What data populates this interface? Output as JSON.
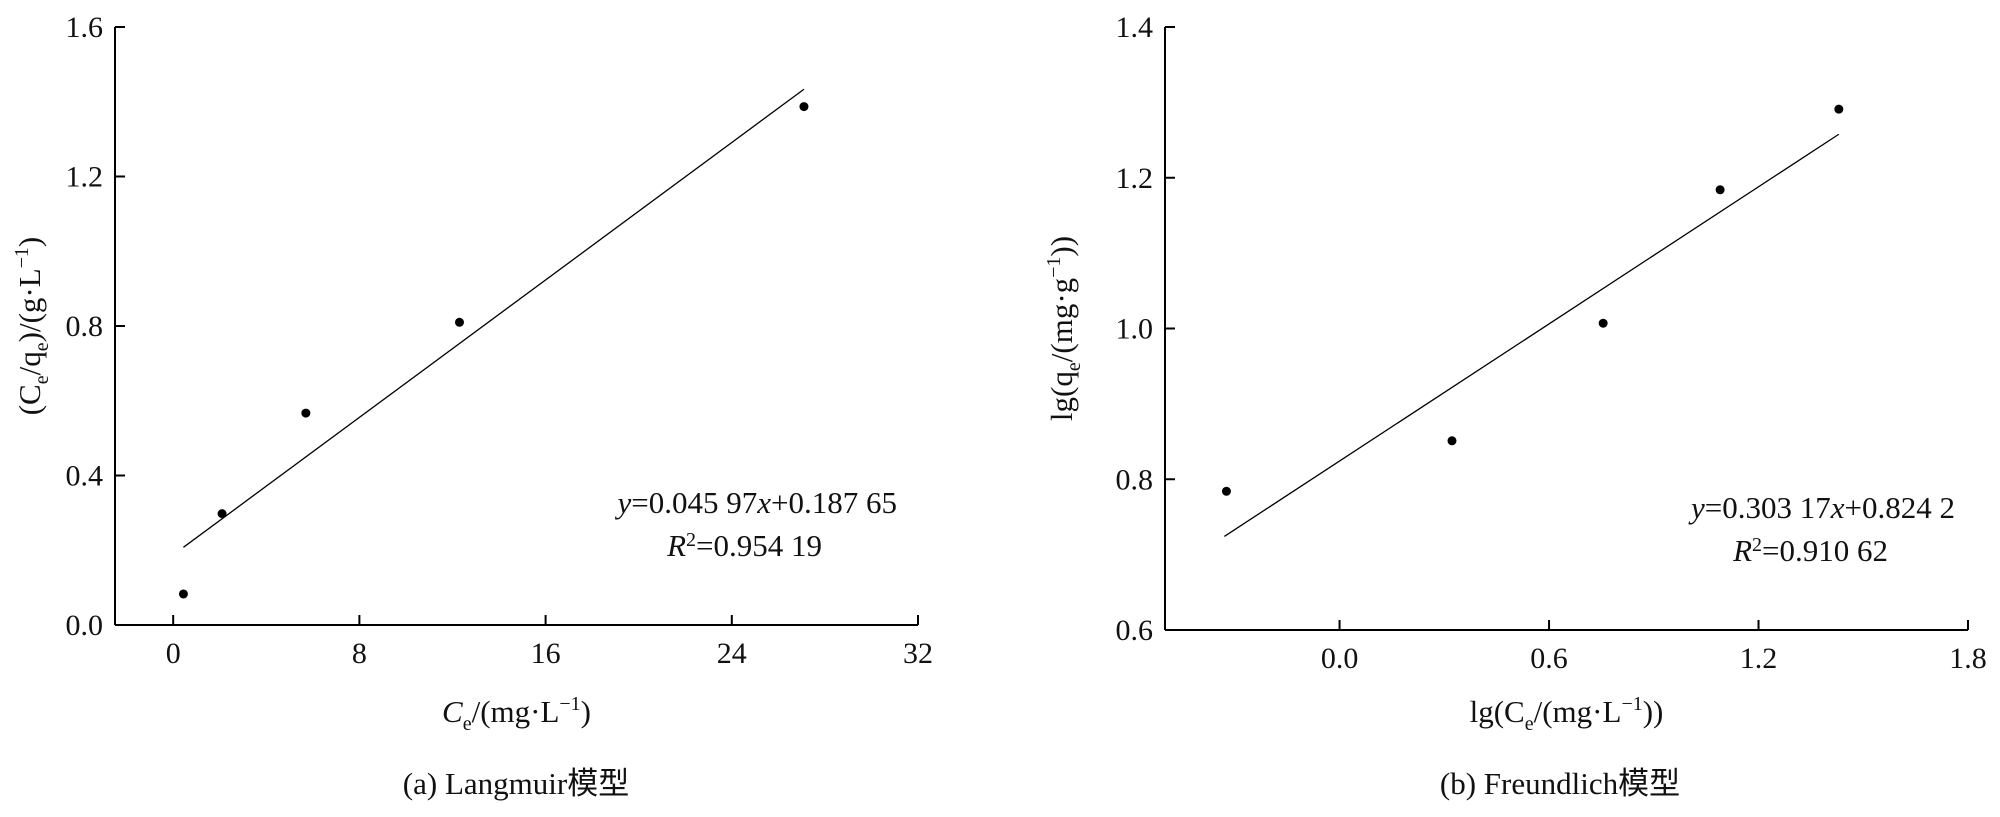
{
  "chart_data": [
    {
      "type": "scatter",
      "caption": "(a) Langmuir模型",
      "xlabel": {
        "main": "C",
        "sub": "e",
        "rest": "/(mg·L",
        "sup": "−1",
        "end": ")"
      },
      "ylabel": {
        "p1": "(C",
        "s1": "e",
        "p2": "/q",
        "s2": "e",
        "p3": ")/(g·L",
        "sup": "−1",
        "end": ")"
      },
      "xlim": [
        -2.5,
        32
      ],
      "ylim": [
        0,
        1.6
      ],
      "xticks": [
        0,
        8,
        16,
        24,
        32
      ],
      "xtick_labels": [
        "0",
        "8",
        "16",
        "24",
        "32"
      ],
      "yticks": [
        0,
        0.4,
        0.8,
        1.2,
        1.6
      ],
      "ytick_labels": [
        "0.0",
        "0.4",
        "0.8",
        "1.2",
        "1.6"
      ],
      "points": [
        {
          "x": 0.44,
          "y": 0.083
        },
        {
          "x": 2.1,
          "y": 0.298
        },
        {
          "x": 5.7,
          "y": 0.567
        },
        {
          "x": 12.3,
          "y": 0.81
        },
        {
          "x": 27.1,
          "y": 1.387
        }
      ],
      "fit": {
        "slope": 0.04597,
        "intercept": 0.18765,
        "x_range": [
          0.44,
          27.1
        ]
      },
      "equation": {
        "y": "y",
        "a": "=0.045 97",
        "x": "x",
        "b": "+0.187 65"
      },
      "r2": {
        "r": "R",
        "sup": "2",
        "val": "=0.954 19"
      },
      "grid": false
    },
    {
      "type": "scatter",
      "caption": "(b) Freundlich模型",
      "xlabel": {
        "main": "lg(C",
        "sub": "e",
        "rest": "/(mg·L",
        "sup": "−1",
        "end": "))"
      },
      "ylabel": {
        "p1": "lg(q",
        "s1": "e",
        "p2": "/(mg·g",
        "s2": "",
        "p3": "",
        "sup": "−1",
        "end": "))"
      },
      "xlim": [
        -0.5,
        1.8
      ],
      "ylim": [
        0.6,
        1.4
      ],
      "xticks": [
        0,
        0.6,
        1.2,
        1.8
      ],
      "xtick_labels": [
        "0.0",
        "0.6",
        "1.2",
        "1.8"
      ],
      "yticks": [
        0.6,
        0.8,
        1.0,
        1.2,
        1.4
      ],
      "ytick_labels": [
        "0.6",
        "0.8",
        "1.0",
        "1.2",
        "1.4"
      ],
      "points": [
        {
          "x": -0.324,
          "y": 0.784
        },
        {
          "x": 0.322,
          "y": 0.851
        },
        {
          "x": 0.755,
          "y": 1.007
        },
        {
          "x": 1.09,
          "y": 1.184
        },
        {
          "x": 1.43,
          "y": 1.291
        }
      ],
      "fit": {
        "slope": 0.30317,
        "intercept": 0.8242,
        "x_range": [
          -0.33,
          1.43
        ]
      },
      "equation": {
        "y": "y",
        "a": "=0.303 17",
        "x": "x",
        "b": "+0.824 2"
      },
      "r2": {
        "r": "R",
        "sup": "2",
        "val": "=0.910 62"
      },
      "grid": false
    }
  ]
}
